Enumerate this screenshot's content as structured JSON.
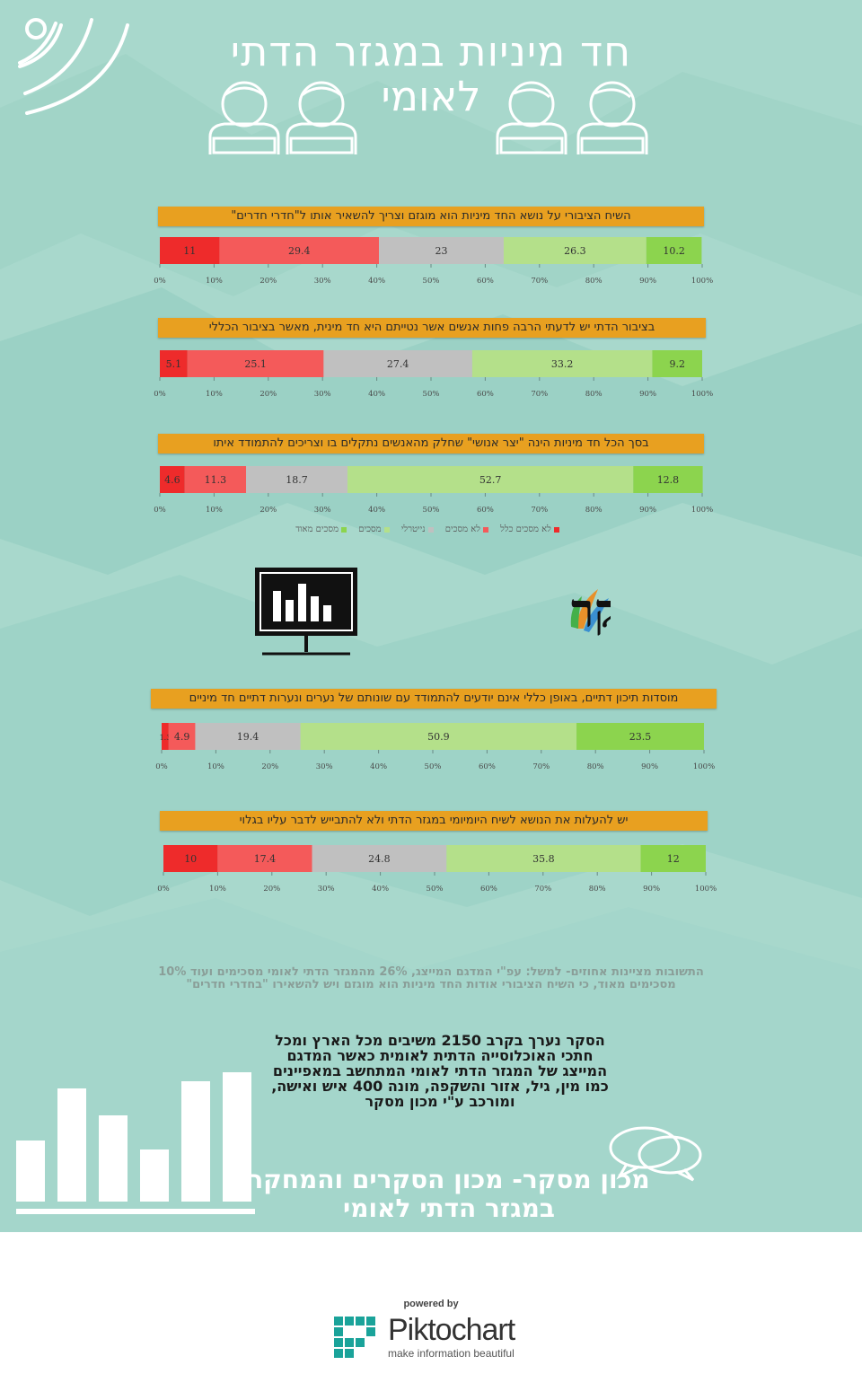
{
  "title": {
    "line1": "חד מיניות במגזר הדתי",
    "line2": "לאומי"
  },
  "legend": [
    {
      "label": "לא מסכים כלל",
      "color": "#ee2b2b"
    },
    {
      "label": "לא מסכים",
      "color": "#f45a5a"
    },
    {
      "label": "נייטרלי",
      "color": "#c0c0c0"
    },
    {
      "label": "מסכים",
      "color": "#b4e08a"
    },
    {
      "label": "מסכים מאוד",
      "color": "#8cd44e"
    }
  ],
  "axis_ticks": [
    "0%",
    "10%",
    "20%",
    "30%",
    "40%",
    "50%",
    "60%",
    "70%",
    "80%",
    "90%",
    "100%"
  ],
  "chart_data": [
    {
      "type": "bar",
      "stacked": true,
      "orientation": "horizontal",
      "title": "השיח הציבורי על נושא החד מיניות הוא מוגזם וצריך להשאיר אותו ל\"חדרי חדרים\"",
      "values": [
        11,
        29.4,
        23,
        26.3,
        10.2
      ],
      "xlim": [
        0,
        100
      ]
    },
    {
      "type": "bar",
      "stacked": true,
      "orientation": "horizontal",
      "title": "בציבור הדתי יש לדעתי הרבה פחות אנשים אשר נטייתם היא חד מינית, מאשר בציבור הכללי",
      "values": [
        5.1,
        25.1,
        27.4,
        33.2,
        9.2
      ],
      "xlim": [
        0,
        100
      ]
    },
    {
      "type": "bar",
      "stacked": true,
      "orientation": "horizontal",
      "title": "בסך הכל חד מיניות הינה \"יצר אנושי\" שחלק מהאנשים נתקלים בו וצריכים להתמודד איתו",
      "values": [
        4.6,
        11.3,
        18.7,
        52.7,
        12.8
      ],
      "xlim": [
        0,
        100
      ]
    },
    {
      "type": "bar",
      "stacked": true,
      "orientation": "horizontal",
      "title": "מוסדות תיכון דתיים, באופן כללי אינם יודעים להתמודד עם שונותם של נערים ונערות דתיים חד מיניים",
      "values": [
        1.3,
        4.9,
        19.4,
        50.9,
        23.5
      ],
      "xlim": [
        0,
        100
      ]
    },
    {
      "type": "bar",
      "stacked": true,
      "orientation": "horizontal",
      "title": "יש להעלות את הנושא לשיח היומיומי במגזר הדתי ולא להתבייש לדבר עליו בגלוי",
      "values": [
        10,
        17.4,
        24.8,
        35.8,
        12
      ],
      "xlim": [
        0,
        100
      ]
    }
  ],
  "logo": {
    "name": "מסקר"
  },
  "note": "התשובות מציינות אחוזים- למשל: עפ\"י המדגם המייצג, 26% מהמגזר הדתי לאומי מסכימים ועוד 10% מסכימים מאוד, כי השיח הציבורי אודות החד מיניות הוא מוגזם ויש להשאירו \"בחדרי חדרים\"",
  "method": "הסקר נערך בקרב 2150 משיבים מכל הארץ ומכל חתכי האוכלוסייה הדתית לאומית כאשר המדגם המייצג של המגזר הדתי לאומי המתחשב במאפיינים כמו מין, גיל, אזור והשקפה, מונה 400 איש ואישה, ומורכב ע\"י מכון מסקר",
  "footer_title": "מכון מסקר- מכון הסקרים והמחקר במגזר הדתי לאומי",
  "piktochart": {
    "powered": "powered by",
    "name": "Piktochart",
    "tagline": "make information beautiful"
  }
}
